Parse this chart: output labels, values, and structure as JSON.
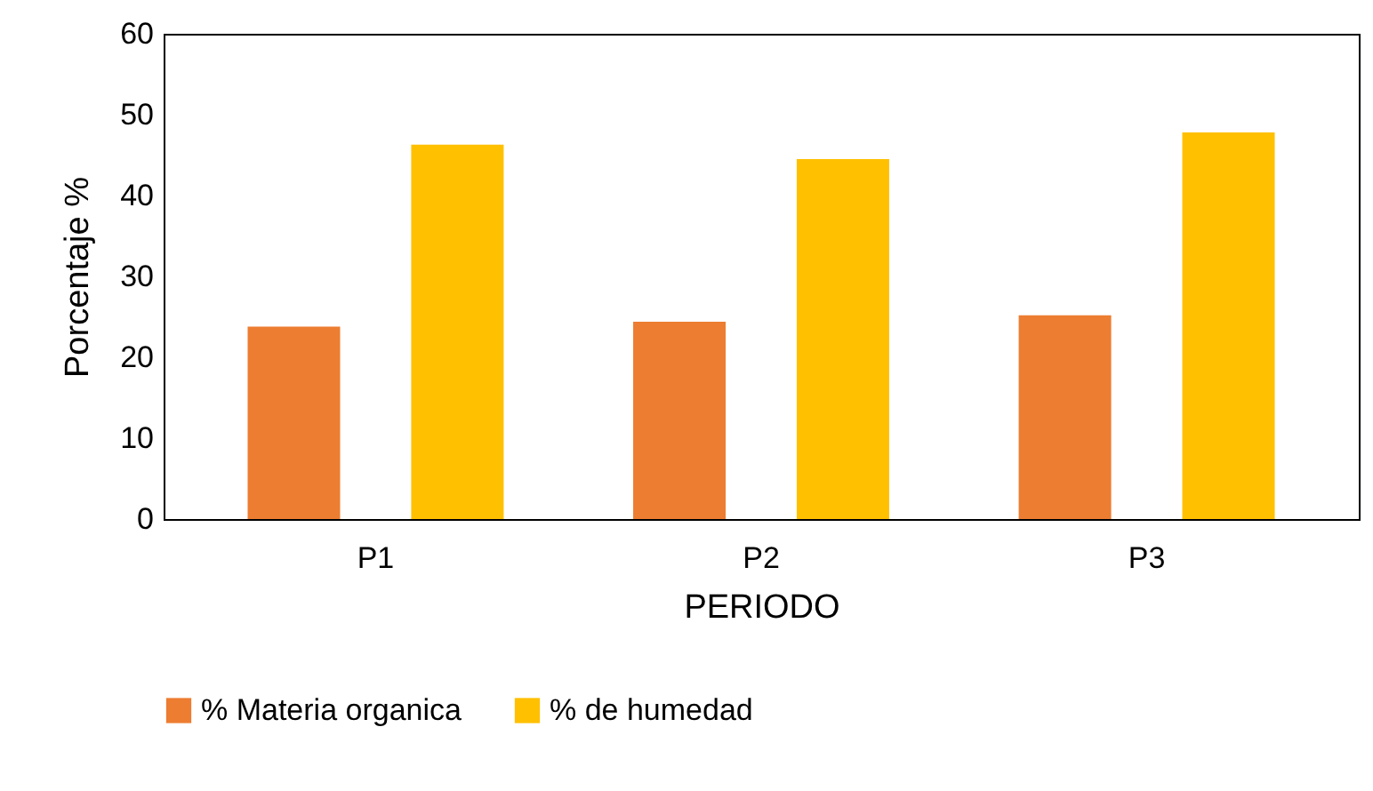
{
  "chart_data": {
    "type": "bar",
    "xlabel": "PERIODO",
    "ylabel": "Porcentaje %",
    "categories": [
      "P1",
      "P2",
      "P3"
    ],
    "series": [
      {
        "name": "% Materia organica",
        "color": "#ed7d31",
        "values": [
          23.8,
          24.4,
          25.2
        ]
      },
      {
        "name": "% de humedad",
        "color": "#ffc000",
        "values": [
          46.3,
          44.5,
          47.8
        ]
      }
    ],
    "ylim": [
      0,
      60
    ],
    "yticks": [
      0,
      10,
      20,
      30,
      40,
      50,
      60
    ],
    "grid": false,
    "legend": "bottom"
  }
}
